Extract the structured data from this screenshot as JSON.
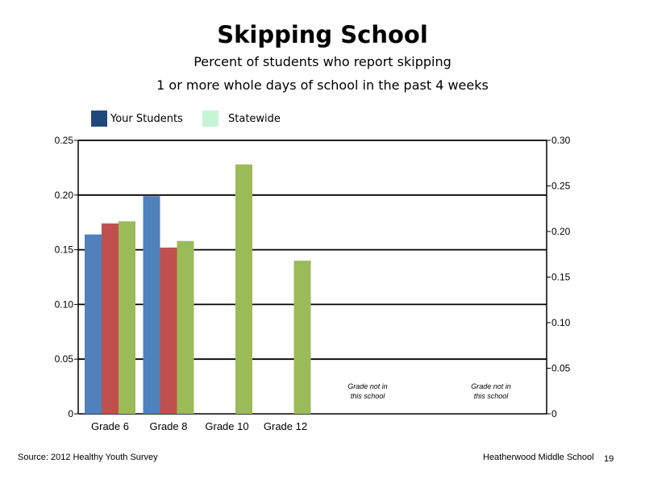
{
  "header": {
    "title": "Skipping School",
    "subtitle_line1": "Percent of students who report skipping",
    "subtitle_line2": "1 or more whole days of school in the past 4 weeks"
  },
  "legend": [
    {
      "label": "Your Students",
      "color": "#1f497d"
    },
    {
      "label": "Statewide",
      "color": "#c6f5d6"
    }
  ],
  "footer": {
    "source": "Source: 2012 Healthy Youth Survey",
    "school": "Heatherwood Middle  School",
    "page": "19"
  },
  "chart_data": {
    "type": "bar",
    "categories": [
      "Grade 6",
      "Grade 8",
      "Grade 10",
      "Grade 12",
      "",
      ""
    ],
    "series": [
      {
        "color": "#4f81bd",
        "values": [
          0.164,
          0.199,
          null,
          null,
          null,
          null
        ]
      },
      {
        "color": "#c0504d",
        "values": [
          0.174,
          0.152,
          null,
          null,
          null,
          null
        ]
      },
      {
        "color": "#9bbb59",
        "values": [
          0.176,
          0.158,
          0.228,
          0.14,
          null,
          null
        ]
      }
    ],
    "ylim": [
      0,
      0.25
    ],
    "yticks": [
      "0",
      "0.05",
      "0.10",
      "0.15",
      "0.20",
      "0.25"
    ],
    "y2lim": [
      0,
      0.3
    ],
    "y2ticks": [
      "0",
      "0.05",
      "0.10",
      "0.15",
      "0.20",
      "0.25",
      "0.30"
    ],
    "grid": true,
    "annotations": [
      {
        "category_index": 4,
        "line1": "Grade not in",
        "line2": "this school"
      },
      {
        "category_index": 5,
        "line1": "Grade not in",
        "line2": "this school"
      }
    ]
  }
}
